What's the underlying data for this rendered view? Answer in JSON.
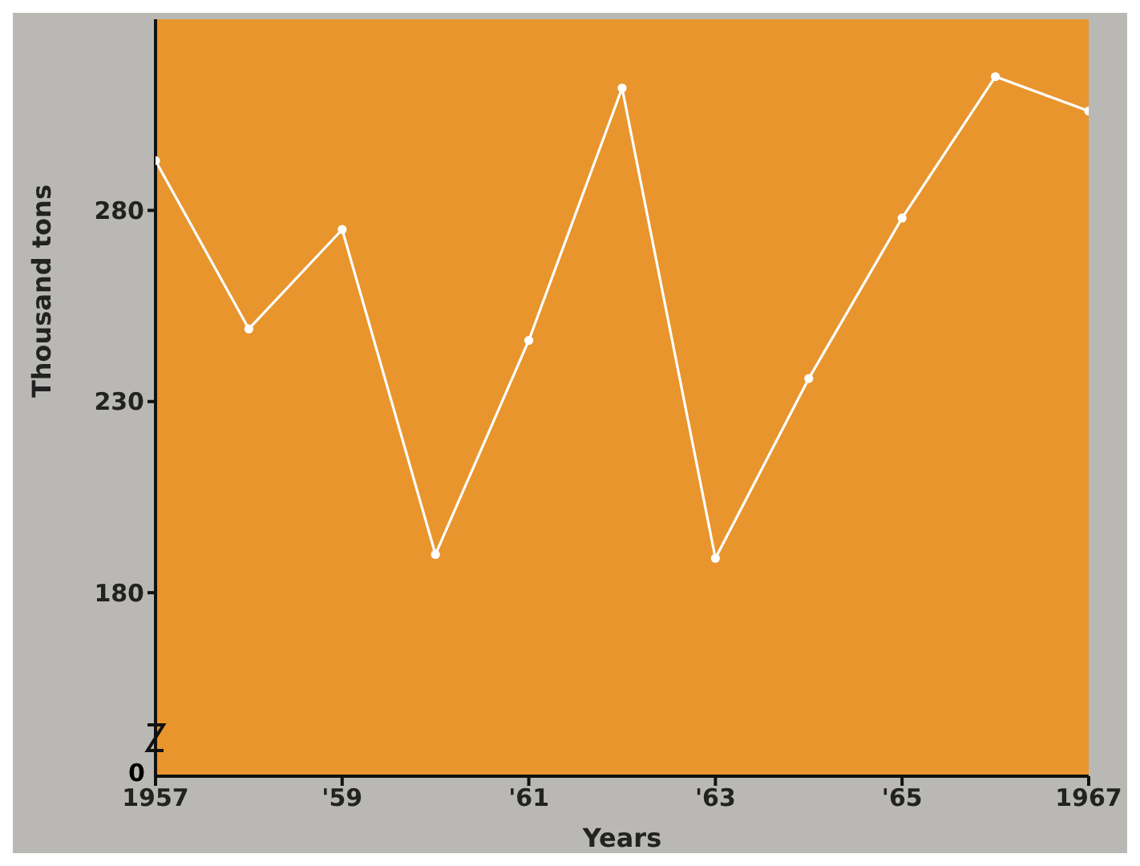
{
  "chart_data": {
    "type": "line",
    "xlabel": "Years",
    "ylabel": "Thousand  tons",
    "annotations": [
      "0"
    ],
    "x": [
      1957,
      1958,
      1959,
      1960,
      1961,
      1962,
      1963,
      1964,
      1965,
      1966,
      1967
    ],
    "series": [
      {
        "color": "#ffffff",
        "values": [
          293,
          249,
          275,
          190,
          246,
          312,
          189,
          236,
          278,
          315,
          306
        ]
      }
    ],
    "xlim": [
      1957,
      1967
    ],
    "xticks": [
      1957,
      {
        "value": 1959,
        "label": "'59"
      },
      {
        "value": 1961,
        "label": "'61"
      },
      {
        "value": 1963,
        "label": "'63"
      },
      {
        "value": 1965,
        "label": "'65"
      },
      1967
    ],
    "ylim": [
      132,
      330
    ],
    "yticks": [
      180,
      230,
      280
    ],
    "marker": "circle",
    "line_style": "solid",
    "grid": false,
    "legend": false
  }
}
